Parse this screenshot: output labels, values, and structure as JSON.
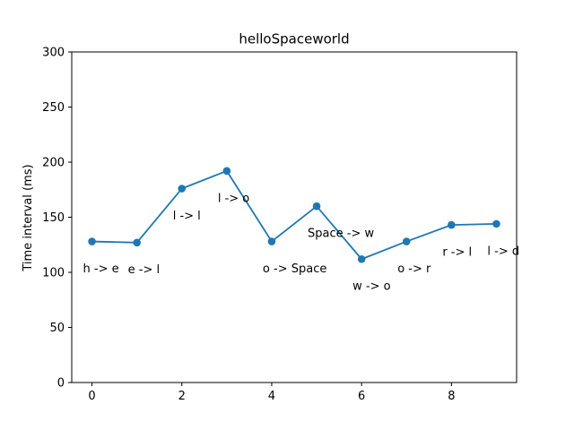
{
  "chart_data": {
    "type": "line",
    "title": "helloSpaceworld",
    "xlabel": "",
    "ylabel": "Time interval (ms)",
    "xlim": [
      -0.45,
      9.45
    ],
    "ylim": [
      0,
      300
    ],
    "xticks": [
      0,
      2,
      4,
      6,
      8
    ],
    "yticks": [
      0,
      50,
      100,
      150,
      200,
      250,
      300
    ],
    "grid": false,
    "color": "#1f77b4",
    "series": [
      {
        "x": [
          0,
          1,
          2,
          3,
          4,
          5,
          6,
          7,
          8,
          9
        ],
        "y": [
          128,
          127,
          176,
          192,
          128,
          160,
          112,
          128,
          143,
          144
        ]
      }
    ],
    "annotations": [
      {
        "text": "h -> e",
        "x": -0.2,
        "y": 100
      },
      {
        "text": "e -> l",
        "x": 0.8,
        "y": 99
      },
      {
        "text": "l -> l",
        "x": 1.8,
        "y": 148
      },
      {
        "text": "l -> o",
        "x": 2.8,
        "y": 164
      },
      {
        "text": "o -> Space",
        "x": 3.8,
        "y": 100
      },
      {
        "text": "Space -> w",
        "x": 4.8,
        "y": 132
      },
      {
        "text": "w -> o",
        "x": 5.8,
        "y": 84
      },
      {
        "text": "o -> r",
        "x": 6.8,
        "y": 100
      },
      {
        "text": "r -> l",
        "x": 7.8,
        "y": 115
      },
      {
        "text": "l -> d",
        "x": 8.8,
        "y": 116
      }
    ]
  }
}
